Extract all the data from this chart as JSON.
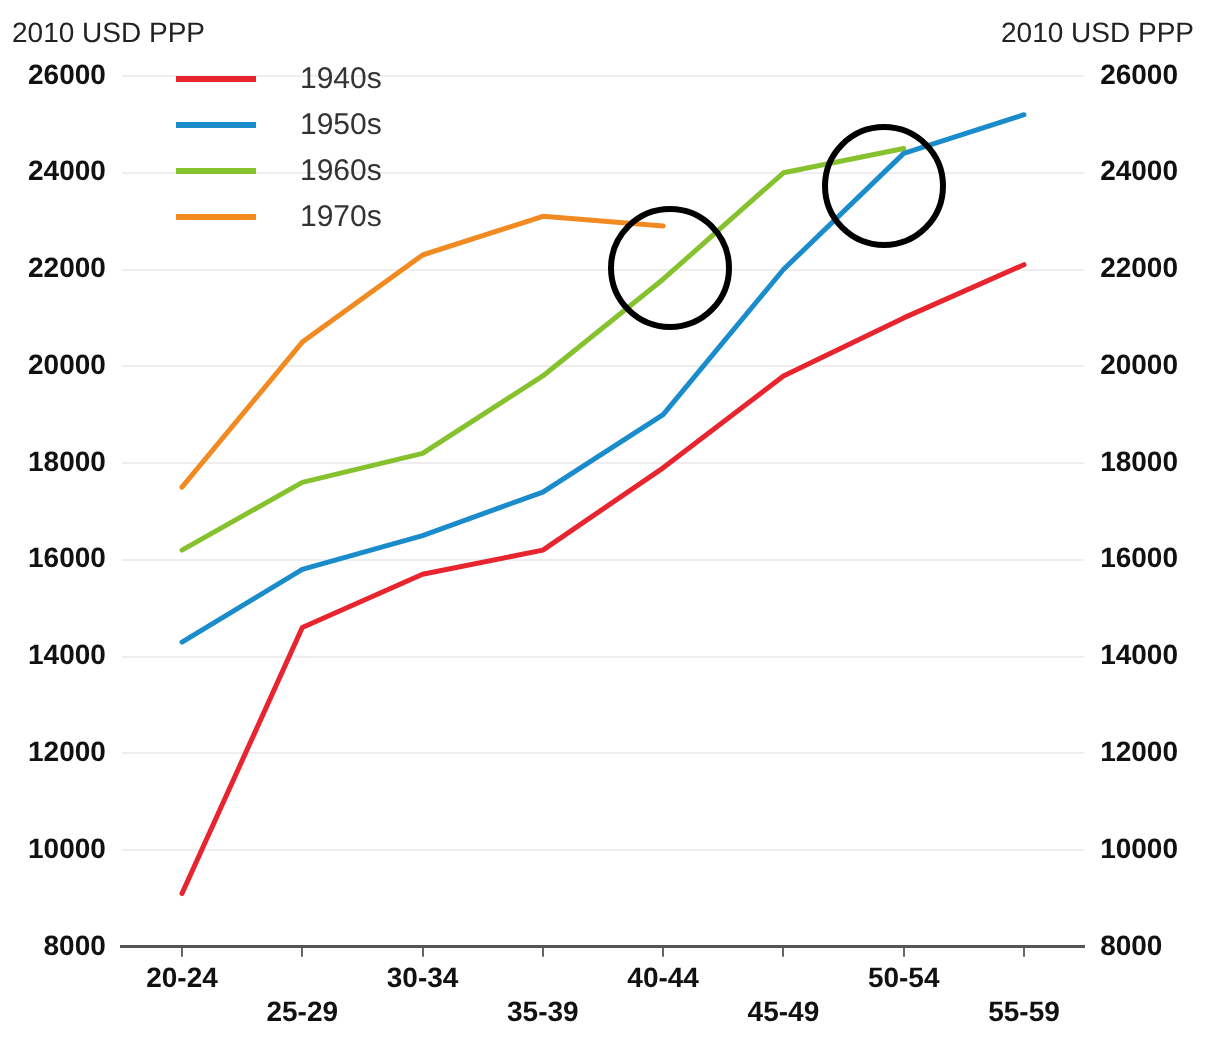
{
  "chart_data": {
    "type": "line",
    "ylabel": "2010 USD PPP",
    "y2label": "2010 USD PPP",
    "categories": [
      "20-24",
      "25-29",
      "30-34",
      "35-39",
      "40-44",
      "45-49",
      "50-54",
      "55-59"
    ],
    "series": [
      {
        "name": "1940s",
        "color": "#e8242f",
        "values": [
          9100,
          14600,
          15700,
          16200,
          17900,
          19800,
          21000,
          22100
        ]
      },
      {
        "name": "1950s",
        "color": "#1a8ccc",
        "values": [
          14300,
          15800,
          16500,
          17400,
          19000,
          22000,
          24400,
          25200
        ]
      },
      {
        "name": "1960s",
        "color": "#86c22e",
        "values": [
          16200,
          17600,
          18200,
          19800,
          21800,
          24000,
          24500,
          null
        ]
      },
      {
        "name": "1970s",
        "color": "#f28a22",
        "values": [
          17500,
          20500,
          22300,
          23100,
          22900,
          null,
          null,
          null
        ]
      }
    ],
    "ylim": [
      8000,
      26000
    ],
    "yticks": [
      8000,
      10000,
      12000,
      14000,
      16000,
      18000,
      20000,
      22000,
      24000,
      26000
    ],
    "y2lim": [
      8000,
      26000
    ],
    "y2ticks": [
      8000,
      10000,
      12000,
      14000,
      16000,
      18000,
      20000,
      22000,
      24000,
      26000
    ],
    "grid": "y",
    "legend": "top left",
    "marker": "none",
    "line_style": "solid"
  }
}
